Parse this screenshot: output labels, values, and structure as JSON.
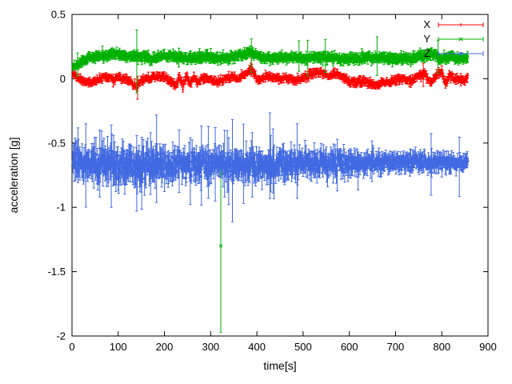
{
  "chart_data": {
    "type": "scatter",
    "title": "",
    "xlabel": "time[s]",
    "ylabel": "acceleration [g]",
    "xlim": [
      0,
      900
    ],
    "ylim": [
      -2,
      0.5
    ],
    "x_ticks": [
      0,
      100,
      200,
      300,
      400,
      500,
      600,
      700,
      800,
      900
    ],
    "y_ticks": [
      -2,
      -1.5,
      -1,
      -0.5,
      0,
      0.5
    ],
    "grid": false,
    "legend_position": "top-right-inside",
    "background": "#ffffff",
    "border_color": "#000000",
    "x_start": 2,
    "x_end": 856,
    "dt": 1,
    "series": [
      {
        "name": "X",
        "color": "#ff0000",
        "marker": "plus",
        "seed": 11,
        "sd": 0.012,
        "err": 0.02,
        "spike_prob": 0.01,
        "spike_mult": 1.8,
        "trend": [
          [
            0,
            0.05
          ],
          [
            5,
            0.03
          ],
          [
            15,
            0.0
          ],
          [
            30,
            -0.02
          ],
          [
            45,
            -0.03
          ],
          [
            60,
            0.0
          ],
          [
            70,
            0.02
          ],
          [
            80,
            0.01
          ],
          [
            90,
            -0.01
          ],
          [
            100,
            0.02
          ],
          [
            110,
            0.0
          ],
          [
            125,
            -0.02
          ],
          [
            140,
            -0.06
          ],
          [
            150,
            -0.02
          ],
          [
            160,
            0.0
          ],
          [
            175,
            0.01
          ],
          [
            190,
            0.02
          ],
          [
            205,
            0.0
          ],
          [
            215,
            -0.02
          ],
          [
            225,
            -0.05
          ],
          [
            232,
            0.02
          ],
          [
            240,
            -0.06
          ],
          [
            248,
            0.03
          ],
          [
            256,
            -0.04
          ],
          [
            264,
            0.02
          ],
          [
            272,
            -0.03
          ],
          [
            285,
            0.01
          ],
          [
            300,
            -0.01
          ],
          [
            315,
            -0.03
          ],
          [
            330,
            0.0
          ],
          [
            345,
            0.01
          ],
          [
            360,
            0.0
          ],
          [
            375,
            0.04
          ],
          [
            388,
            0.08
          ],
          [
            395,
            0.02
          ],
          [
            405,
            -0.01
          ],
          [
            420,
            0.02
          ],
          [
            435,
            0.01
          ],
          [
            450,
            0.0
          ],
          [
            465,
            0.01
          ],
          [
            480,
            -0.01
          ],
          [
            495,
            0.0
          ],
          [
            510,
            0.02
          ],
          [
            525,
            0.05
          ],
          [
            540,
            0.05
          ],
          [
            555,
            0.02
          ],
          [
            570,
            0.04
          ],
          [
            585,
            0.01
          ],
          [
            600,
            -0.02
          ],
          [
            615,
            -0.03
          ],
          [
            630,
            -0.02
          ],
          [
            645,
            -0.04
          ],
          [
            660,
            -0.05
          ],
          [
            675,
            -0.03
          ],
          [
            690,
            -0.02
          ],
          [
            705,
            -0.01
          ],
          [
            720,
            0.0
          ],
          [
            735,
            -0.02
          ],
          [
            750,
            0.02
          ],
          [
            762,
            0.04
          ],
          [
            775,
            -0.03
          ],
          [
            788,
            0.02
          ],
          [
            800,
            0.05
          ],
          [
            808,
            -0.04
          ],
          [
            816,
            0.02
          ],
          [
            830,
            0.0
          ],
          [
            845,
            -0.01
          ],
          [
            856,
            0.0
          ]
        ],
        "outliers": [
          [
            142,
            -0.07,
            -0.16,
            0.02
          ],
          [
            388,
            0.09,
            0.02,
            0.16
          ],
          [
            760,
            0.03,
            -0.06,
            0.12
          ]
        ]
      },
      {
        "name": "Y",
        "color": "#00b000",
        "marker": "cross",
        "seed": 22,
        "sd": 0.012,
        "err": 0.028,
        "spike_prob": 0.008,
        "spike_mult": 2.0,
        "trend": [
          [
            0,
            0.1
          ],
          [
            8,
            0.11
          ],
          [
            20,
            0.13
          ],
          [
            35,
            0.16
          ],
          [
            50,
            0.17
          ],
          [
            70,
            0.18
          ],
          [
            90,
            0.19
          ],
          [
            110,
            0.18
          ],
          [
            130,
            0.17
          ],
          [
            150,
            0.17
          ],
          [
            170,
            0.16
          ],
          [
            190,
            0.17
          ],
          [
            210,
            0.18
          ],
          [
            230,
            0.17
          ],
          [
            250,
            0.16
          ],
          [
            270,
            0.16
          ],
          [
            290,
            0.17
          ],
          [
            310,
            0.16
          ],
          [
            330,
            0.16
          ],
          [
            350,
            0.17
          ],
          [
            370,
            0.19
          ],
          [
            385,
            0.21
          ],
          [
            395,
            0.18
          ],
          [
            410,
            0.17
          ],
          [
            430,
            0.16
          ],
          [
            450,
            0.16
          ],
          [
            470,
            0.17
          ],
          [
            490,
            0.16
          ],
          [
            510,
            0.16
          ],
          [
            530,
            0.17
          ],
          [
            550,
            0.17
          ],
          [
            570,
            0.16
          ],
          [
            590,
            0.15
          ],
          [
            610,
            0.16
          ],
          [
            630,
            0.17
          ],
          [
            650,
            0.16
          ],
          [
            670,
            0.17
          ],
          [
            690,
            0.16
          ],
          [
            710,
            0.15
          ],
          [
            730,
            0.16
          ],
          [
            750,
            0.17
          ],
          [
            770,
            0.18
          ],
          [
            785,
            0.19
          ],
          [
            795,
            0.16
          ],
          [
            810,
            0.16
          ],
          [
            825,
            0.17
          ],
          [
            840,
            0.16
          ],
          [
            856,
            0.16
          ]
        ],
        "outliers": [
          [
            12,
            0.11,
            0.02,
            0.2
          ],
          [
            140,
            0.18,
            -0.11,
            0.38
          ],
          [
            322,
            -1.3,
            -1.97,
            -0.63
          ],
          [
            388,
            0.18,
            0.05,
            0.31
          ],
          [
            792,
            0.17,
            0.04,
            0.3
          ]
        ]
      },
      {
        "name": "Z",
        "color": "#4169e1",
        "marker": "star",
        "seed": 33,
        "sd": [
          [
            0,
            0.045
          ],
          [
            150,
            0.05
          ],
          [
            250,
            0.04
          ],
          [
            400,
            0.04
          ],
          [
            550,
            0.035
          ],
          [
            700,
            0.026
          ],
          [
            860,
            0.022
          ]
        ],
        "err": [
          [
            0,
            0.09
          ],
          [
            150,
            0.1
          ],
          [
            250,
            0.08
          ],
          [
            400,
            0.08
          ],
          [
            550,
            0.07
          ],
          [
            700,
            0.05
          ],
          [
            860,
            0.045
          ]
        ],
        "spike_prob": 0.03,
        "spike_mult": 2.2,
        "trend": [
          [
            0,
            -0.64
          ],
          [
            30,
            -0.66
          ],
          [
            60,
            -0.67
          ],
          [
            90,
            -0.66
          ],
          [
            120,
            -0.67
          ],
          [
            150,
            -0.68
          ],
          [
            180,
            -0.66
          ],
          [
            210,
            -0.67
          ],
          [
            240,
            -0.66
          ],
          [
            270,
            -0.67
          ],
          [
            300,
            -0.66
          ],
          [
            330,
            -0.67
          ],
          [
            360,
            -0.68
          ],
          [
            390,
            -0.67
          ],
          [
            420,
            -0.66
          ],
          [
            450,
            -0.66
          ],
          [
            480,
            -0.67
          ],
          [
            510,
            -0.66
          ],
          [
            540,
            -0.66
          ],
          [
            570,
            -0.65
          ],
          [
            600,
            -0.66
          ],
          [
            630,
            -0.66
          ],
          [
            660,
            -0.65
          ],
          [
            690,
            -0.64
          ],
          [
            720,
            -0.65
          ],
          [
            750,
            -0.65
          ],
          [
            780,
            -0.66
          ],
          [
            810,
            -0.65
          ],
          [
            840,
            -0.65
          ],
          [
            856,
            -0.65
          ]
        ],
        "outliers": [
          [
            60,
            -0.66,
            -0.92,
            -0.4
          ],
          [
            85,
            -0.67,
            -1.0,
            -0.36
          ],
          [
            140,
            -0.68,
            -1.03,
            -0.44
          ],
          [
            170,
            -0.66,
            -0.9,
            -0.42
          ],
          [
            295,
            -0.65,
            -0.93,
            -0.37
          ],
          [
            310,
            -0.66,
            -0.95,
            -0.38
          ],
          [
            330,
            -0.65,
            -0.92,
            -0.4
          ],
          [
            390,
            -0.67,
            -0.92,
            -0.42
          ],
          [
            430,
            -0.66,
            -0.88,
            -0.44
          ]
        ]
      }
    ]
  }
}
